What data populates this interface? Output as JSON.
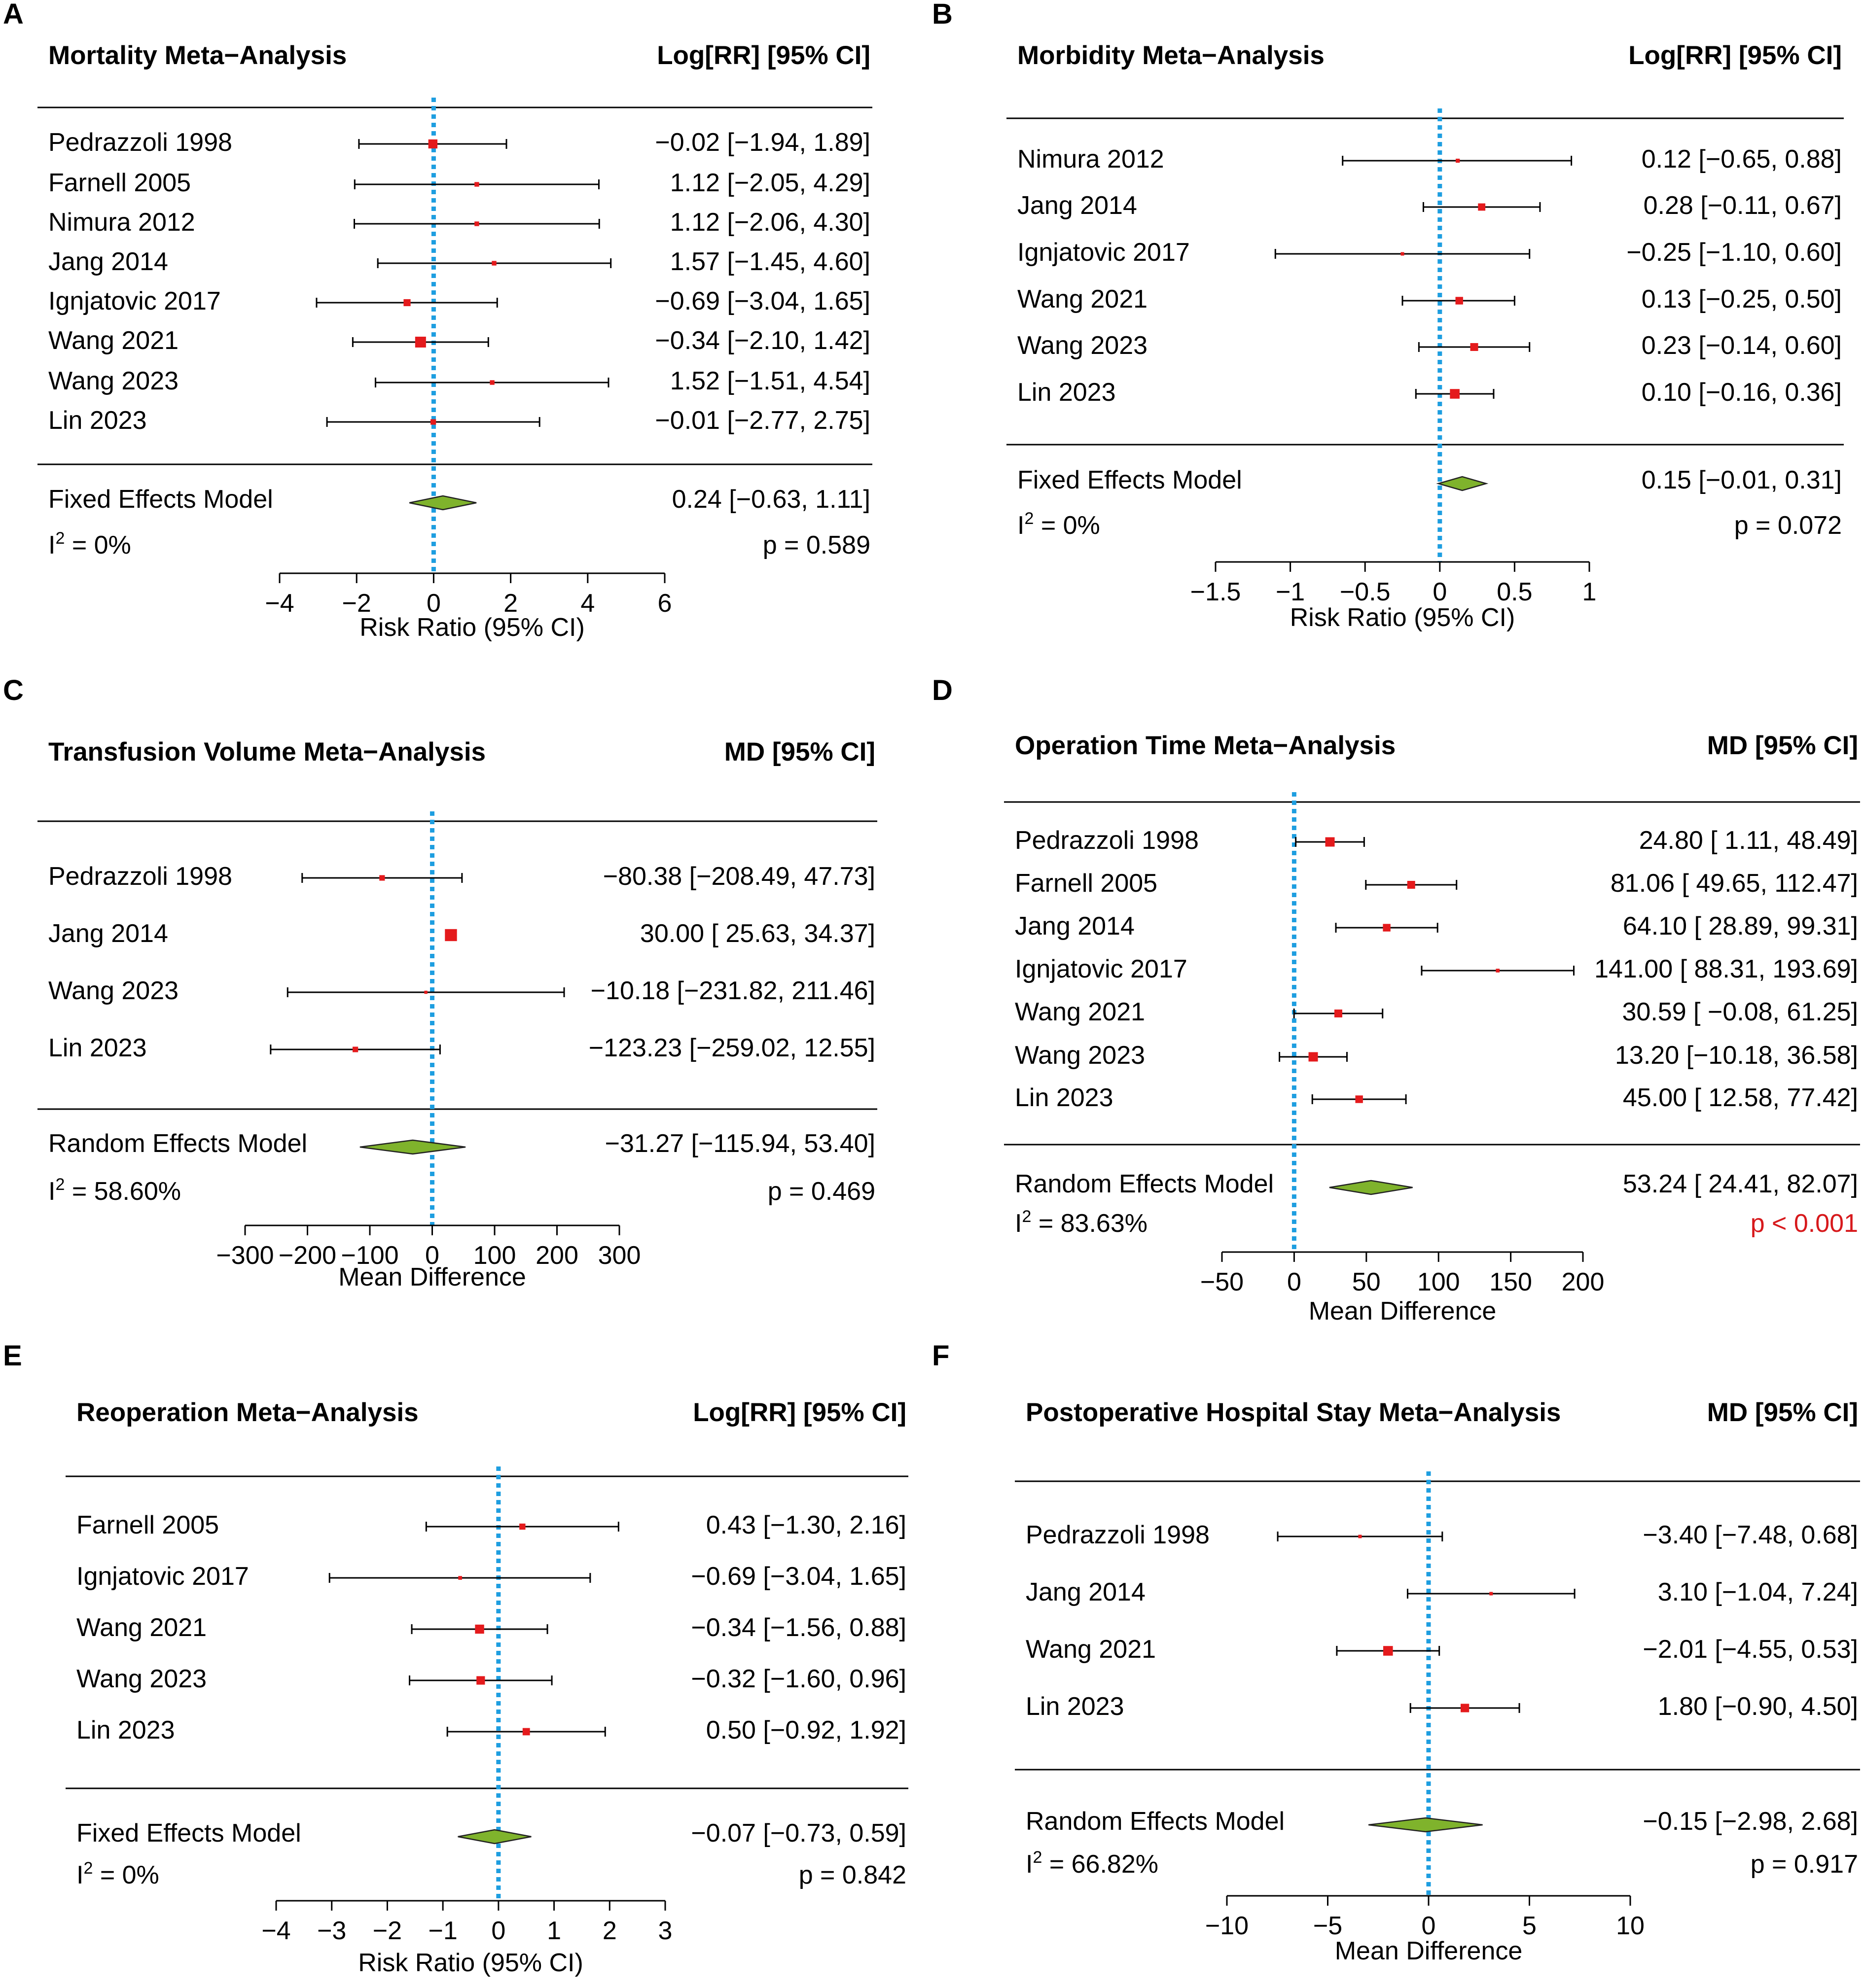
{
  "colors": {
    "square": "#e41a1c",
    "diamond_fill": "#7fb32c",
    "diamond_stroke": "#222222",
    "zero_line": "#1e9ee0",
    "significant_p": "#d7191c",
    "text": "#000000"
  },
  "chart_data": [
    {
      "panel": "A",
      "type": "forest",
      "title": "Mortality Meta−Analysis",
      "estimate_header": "Log[RR] [95% CI]",
      "xlabel": "Risk Ratio (95% CI)",
      "xlim": [
        -4,
        6
      ],
      "ticks": [
        -4,
        -2,
        0,
        2,
        4,
        6
      ],
      "tick_labels": [
        "−4",
        "−2",
        "0",
        "2",
        "4",
        "6"
      ],
      "studies": [
        {
          "name": "Pedrazzoli 1998",
          "est": -0.02,
          "lo": -1.94,
          "hi": 1.89,
          "weight": 2.4,
          "ci": "−0.02 [−1.94, 1.89]"
        },
        {
          "name": "Farnell 2005",
          "est": 1.12,
          "lo": -2.05,
          "hi": 4.29,
          "weight": 0.9,
          "ci": "1.12 [−2.05, 4.29]"
        },
        {
          "name": "Nimura 2012",
          "est": 1.12,
          "lo": -2.06,
          "hi": 4.3,
          "weight": 0.9,
          "ci": "1.12 [−2.06, 4.30]"
        },
        {
          "name": "Jang 2014",
          "est": 1.57,
          "lo": -1.45,
          "hi": 4.6,
          "weight": 0.9,
          "ci": "1.57 [−1.45, 4.60]"
        },
        {
          "name": "Ignjatovic 2017",
          "est": -0.69,
          "lo": -3.04,
          "hi": 1.65,
          "weight": 1.7,
          "ci": "−0.69 [−3.04, 1.65]"
        },
        {
          "name": "Wang 2021",
          "est": -0.34,
          "lo": -2.1,
          "hi": 1.42,
          "weight": 3.0,
          "ci": "−0.34 [−2.10, 1.42]"
        },
        {
          "name": "Wang 2023",
          "est": 1.52,
          "lo": -1.51,
          "hi": 4.54,
          "weight": 0.9,
          "ci": "1.52 [−1.51, 4.54]"
        },
        {
          "name": "Lin 2023",
          "est": -0.01,
          "lo": -2.77,
          "hi": 2.75,
          "weight": 1.2,
          "ci": "−0.01 [−2.77, 2.75]"
        }
      ],
      "summary": {
        "name": "Fixed Effects Model",
        "est": 0.24,
        "lo": -0.63,
        "hi": 1.11,
        "ci": "0.24 [−0.63, 1.11]"
      },
      "heterogeneity": {
        "prefix": "I",
        "sup": "2",
        "value": " = 0%"
      },
      "p_value": "p = 0.589",
      "p_significant": false
    },
    {
      "panel": "B",
      "type": "forest",
      "title": "Morbidity Meta−Analysis",
      "estimate_header": "Log[RR] [95% CI]",
      "xlabel": "Risk Ratio (95% CI)",
      "xlim": [
        -1.5,
        1
      ],
      "ticks": [
        -1.5,
        -1,
        -0.5,
        0,
        0.5,
        1
      ],
      "tick_labels": [
        "−1.5",
        "−1",
        "−0.5",
        "0",
        "0.5",
        "1"
      ],
      "studies": [
        {
          "name": "Nimura 2012",
          "est": 0.12,
          "lo": -0.65,
          "hi": 0.88,
          "weight": 0.7,
          "ci": "0.12 [−0.65, 0.88]"
        },
        {
          "name": "Jang 2014",
          "est": 0.28,
          "lo": -0.11,
          "hi": 0.67,
          "weight": 1.8,
          "ci": "0.28 [−0.11, 0.67]"
        },
        {
          "name": "Ignjatovic 2017",
          "est": -0.25,
          "lo": -1.1,
          "hi": 0.6,
          "weight": 0.5,
          "ci": "−0.25 [−1.10, 0.60]"
        },
        {
          "name": "Wang 2021",
          "est": 0.13,
          "lo": -0.25,
          "hi": 0.5,
          "weight": 1.9,
          "ci": "0.13 [−0.25, 0.50]"
        },
        {
          "name": "Wang 2023",
          "est": 0.23,
          "lo": -0.14,
          "hi": 0.6,
          "weight": 2.0,
          "ci": "0.23 [−0.14, 0.60]"
        },
        {
          "name": "Lin 2023",
          "est": 0.1,
          "lo": -0.16,
          "hi": 0.36,
          "weight": 2.6,
          "ci": "0.10 [−0.16, 0.36]"
        }
      ],
      "summary": {
        "name": "Fixed Effects Model",
        "est": 0.15,
        "lo": -0.01,
        "hi": 0.31,
        "ci": "0.15 [−0.01, 0.31]"
      },
      "heterogeneity": {
        "prefix": "I",
        "sup": "2",
        "value": " = 0%"
      },
      "p_value": "p = 0.072",
      "p_significant": false
    },
    {
      "panel": "C",
      "type": "forest",
      "title": "Transfusion Volume Meta−Analysis",
      "estimate_header": "MD [95% CI]",
      "xlabel": "Mean Difference",
      "xlim": [
        -300,
        300
      ],
      "ticks": [
        -300,
        -200,
        -100,
        0,
        100,
        200,
        300
      ],
      "tick_labels": [
        "−300",
        "−200",
        "−100",
        "0",
        "100",
        "200",
        "300"
      ],
      "studies": [
        {
          "name": "Pedrazzoli 1998",
          "est": -80.38,
          "lo": -208.49,
          "hi": 47.73,
          "weight": 1.2,
          "ci": "−80.38 [−208.49,  47.73]"
        },
        {
          "name": "Jang 2014",
          "est": 30.0,
          "lo": 25.63,
          "hi": 34.37,
          "weight": 3.4,
          "ci": "30.00 [  25.63,  34.37]"
        },
        {
          "name": "Wang 2023",
          "est": -10.18,
          "lo": -231.82,
          "hi": 211.46,
          "weight": 0.4,
          "ci": "−10.18 [−231.82, 211.46]"
        },
        {
          "name": "Lin 2023",
          "est": -123.23,
          "lo": -259.02,
          "hi": 12.55,
          "weight": 1.2,
          "ci": "−123.23 [−259.02,  12.55]"
        }
      ],
      "summary": {
        "name": "Random Effects Model",
        "est": -31.27,
        "lo": -115.94,
        "hi": 53.4,
        "ci": "−31.27 [−115.94,  53.40]"
      },
      "heterogeneity": {
        "prefix": "I",
        "sup": "2",
        "value": " = 58.60%"
      },
      "p_value": "p = 0.469",
      "p_significant": false
    },
    {
      "panel": "D",
      "type": "forest",
      "title": "Operation Time Meta−Analysis",
      "estimate_header": "MD [95% CI]",
      "xlabel": "Mean Difference",
      "xlim": [
        -50,
        200
      ],
      "ticks": [
        -50,
        0,
        50,
        100,
        150,
        200
      ],
      "tick_labels": [
        "−50",
        "0",
        "50",
        "100",
        "150",
        "200"
      ],
      "studies": [
        {
          "name": "Pedrazzoli 1998",
          "est": 24.8,
          "lo": 1.11,
          "hi": 48.49,
          "weight": 2.5,
          "ci": "24.80 [  1.11,  48.49]"
        },
        {
          "name": "Farnell 2005",
          "est": 81.06,
          "lo": 49.65,
          "hi": 112.47,
          "weight": 2.0,
          "ci": "81.06 [ 49.65, 112.47]"
        },
        {
          "name": "Jang 2014",
          "est": 64.1,
          "lo": 28.89,
          "hi": 99.31,
          "weight": 1.9,
          "ci": "64.10 [ 28.89,  99.31]"
        },
        {
          "name": "Ignjatovic 2017",
          "est": 141.0,
          "lo": 88.31,
          "hi": 193.69,
          "weight": 0.6,
          "ci": "141.00 [ 88.31, 193.69]"
        },
        {
          "name": "Wang 2021",
          "est": 30.59,
          "lo": -0.08,
          "hi": 61.25,
          "weight": 2.0,
          "ci": "30.59 [ −0.08,  61.25]"
        },
        {
          "name": "Wang 2023",
          "est": 13.2,
          "lo": -10.18,
          "hi": 36.58,
          "weight": 2.5,
          "ci": "13.20 [−10.18,  36.58]"
        },
        {
          "name": "Lin 2023",
          "est": 45.0,
          "lo": 12.58,
          "hi": 77.42,
          "weight": 1.9,
          "ci": "45.00 [ 12.58,  77.42]"
        }
      ],
      "summary": {
        "name": "Random Effects Model",
        "est": 53.24,
        "lo": 24.41,
        "hi": 82.07,
        "ci": "53.24 [ 24.41,  82.07]"
      },
      "heterogeneity": {
        "prefix": "I",
        "sup": "2",
        "value": " = 83.63%"
      },
      "p_value": "p < 0.001",
      "p_significant": true
    },
    {
      "panel": "E",
      "type": "forest",
      "title": "Reoperation Meta−Analysis",
      "estimate_header": "Log[RR] [95% CI]",
      "xlabel": "Risk Ratio (95% CI)",
      "xlim": [
        -4,
        3
      ],
      "ticks": [
        -4,
        -3,
        -2,
        -1,
        0,
        1,
        2,
        3
      ],
      "tick_labels": [
        "−4",
        "−3",
        "−2",
        "−1",
        "0",
        "1",
        "2",
        "3"
      ],
      "studies": [
        {
          "name": "Farnell 2005",
          "est": 0.43,
          "lo": -1.3,
          "hi": 2.16,
          "weight": 1.4,
          "ci": "0.43 [−1.30, 2.16]"
        },
        {
          "name": "Ignjatovic 2017",
          "est": -0.69,
          "lo": -3.04,
          "hi": 1.65,
          "weight": 0.6,
          "ci": "−0.69 [−3.04, 1.65]"
        },
        {
          "name": "Wang 2021",
          "est": -0.34,
          "lo": -1.56,
          "hi": 0.88,
          "weight": 2.4,
          "ci": "−0.34 [−1.56, 0.88]"
        },
        {
          "name": "Wang 2023",
          "est": -0.32,
          "lo": -1.6,
          "hi": 0.96,
          "weight": 2.2,
          "ci": "−0.32 [−1.60, 0.96]"
        },
        {
          "name": "Lin 2023",
          "est": 0.5,
          "lo": -0.92,
          "hi": 1.92,
          "weight": 1.8,
          "ci": "0.50 [−0.92, 1.92]"
        }
      ],
      "summary": {
        "name": "Fixed Effects Model",
        "est": -0.07,
        "lo": -0.73,
        "hi": 0.59,
        "ci": "−0.07 [−0.73, 0.59]"
      },
      "heterogeneity": {
        "prefix": "I",
        "sup": "2",
        "value": " = 0%"
      },
      "p_value": "p = 0.842",
      "p_significant": false
    },
    {
      "panel": "F",
      "type": "forest",
      "title": "Postoperative Hospital Stay Meta−Analysis",
      "estimate_header": "MD [95% CI]",
      "xlabel": "Mean Difference",
      "xlim": [
        -10,
        10
      ],
      "ticks": [
        -10,
        -5,
        0,
        5,
        10
      ],
      "tick_labels": [
        "−10",
        "−5",
        "0",
        "5",
        "10"
      ],
      "studies": [
        {
          "name": "Pedrazzoli 1998",
          "est": -3.4,
          "lo": -7.48,
          "hi": 0.68,
          "weight": 0.5,
          "ci": "−3.40 [−7.48, 0.68]"
        },
        {
          "name": "Jang 2014",
          "est": 3.1,
          "lo": -1.04,
          "hi": 7.24,
          "weight": 0.5,
          "ci": "3.10 [−1.04, 7.24]"
        },
        {
          "name": "Wang 2021",
          "est": -2.01,
          "lo": -4.55,
          "hi": 0.53,
          "weight": 2.6,
          "ci": "−2.01 [−4.55, 0.53]"
        },
        {
          "name": "Lin 2023",
          "est": 1.8,
          "lo": -0.9,
          "hi": 4.5,
          "weight": 2.2,
          "ci": "1.80 [−0.90, 4.50]"
        }
      ],
      "summary": {
        "name": "Random Effects Model",
        "est": -0.15,
        "lo": -2.98,
        "hi": 2.68,
        "ci": "−0.15 [−2.98, 2.68]"
      },
      "heterogeneity": {
        "prefix": "I",
        "sup": "2",
        "value": " = 66.82%"
      },
      "p_value": "p = 0.917",
      "p_significant": false
    }
  ]
}
